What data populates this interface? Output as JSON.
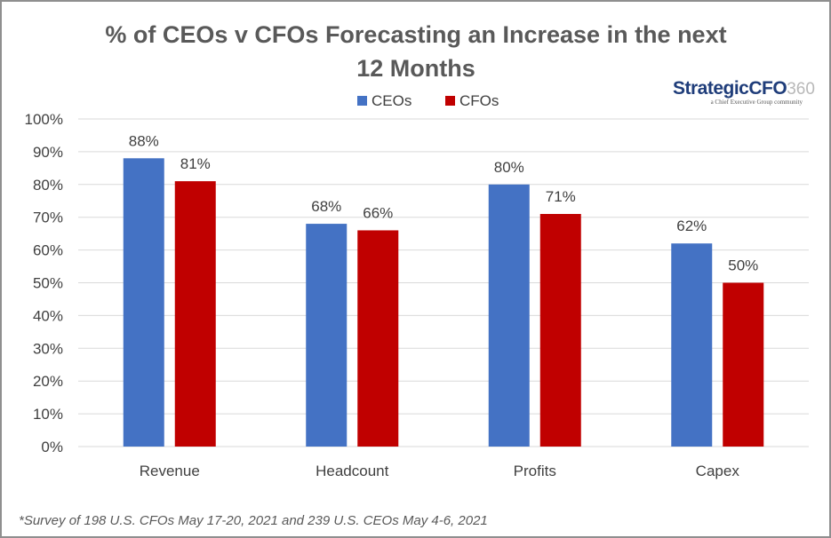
{
  "chart_data": {
    "type": "bar",
    "title_line1": "% of CEOs v CFOs Forecasting an Increase in the next",
    "title_line2": "12 Months",
    "categories": [
      "Revenue",
      "Headcount",
      "Profits",
      "Capex"
    ],
    "series": [
      {
        "name": "CEOs",
        "color": "#4472c4",
        "values": [
          88,
          68,
          80,
          62
        ]
      },
      {
        "name": "CFOs",
        "color": "#c00000",
        "values": [
          81,
          66,
          71,
          50
        ]
      }
    ],
    "data_labels": [
      [
        "88%",
        "68%",
        "80%",
        "62%"
      ],
      [
        "81%",
        "66%",
        "71%",
        "50%"
      ]
    ],
    "ylim": [
      0,
      100
    ],
    "yticks": [
      0,
      10,
      20,
      30,
      40,
      50,
      60,
      70,
      80,
      90,
      100
    ],
    "ytick_labels": [
      "0%",
      "10%",
      "20%",
      "30%",
      "40%",
      "50%",
      "60%",
      "70%",
      "80%",
      "90%",
      "100%"
    ],
    "grid": true,
    "legend_position": "top-center",
    "gridline_color": "#d9d9d9"
  },
  "logo": {
    "name": "StrategicCFO",
    "number": "360",
    "tagline": "a Chief Executive Group community"
  },
  "footnote": "*Survey of 198 U.S. CFOs May 17-20, 2021 and 239 U.S. CEOs May 4-6, 2021"
}
